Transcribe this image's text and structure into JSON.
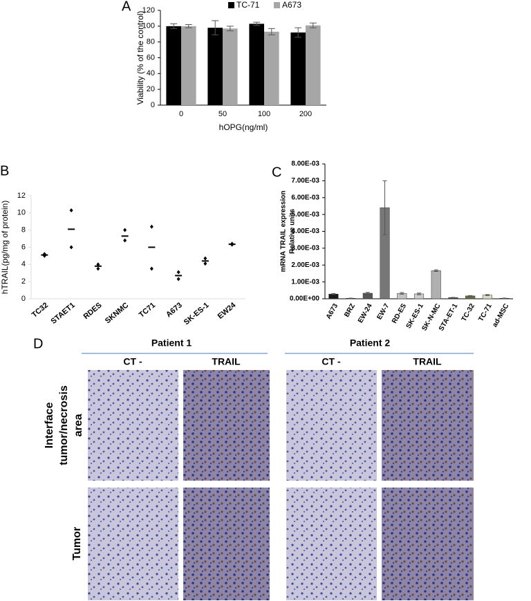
{
  "chart_data": [
    {
      "type": "bar",
      "panel": "A",
      "xlabel": "hOPG(ng/ml)",
      "ylabel": "Viability (% of the control)",
      "categories": [
        "0",
        "50",
        "100",
        "200"
      ],
      "series": [
        {
          "name": "TC-71",
          "color": "#000000",
          "values": [
            100,
            98,
            103,
            92
          ],
          "errors": [
            3,
            9,
            2,
            6
          ]
        },
        {
          "name": "A673",
          "color": "#a6a6a6",
          "values": [
            100,
            97,
            93,
            101
          ],
          "errors": [
            2,
            3,
            4,
            3
          ]
        }
      ],
      "ylim": [
        0,
        120
      ],
      "yticks": [
        0,
        20,
        40,
        60,
        80,
        100,
        120
      ],
      "legend": "top"
    },
    {
      "type": "dot",
      "panel": "B",
      "ylabel": "hTRAIL(pg/mg of  protein)",
      "categories": [
        "TC32",
        "STAET1",
        "RDES",
        "SKNMC",
        "TC71",
        "A673",
        "SK-ES-1",
        "EW24"
      ],
      "points": [
        [
          5.0,
          5.2
        ],
        [
          10.3,
          6.0
        ],
        [
          4.0,
          3.5
        ],
        [
          8.0,
          6.8
        ],
        [
          8.4,
          3.5
        ],
        [
          3.1,
          2.3
        ],
        [
          4.7,
          4.1
        ],
        [
          6.4,
          6.3
        ]
      ],
      "means": [
        5.1,
        8.1,
        3.8,
        7.3,
        6.0,
        2.7,
        4.4,
        6.35
      ],
      "ylim": [
        0,
        12
      ],
      "yticks": [
        0,
        2,
        4,
        6,
        8,
        10,
        12
      ]
    },
    {
      "type": "bar",
      "panel": "C",
      "ylabel": [
        "mRNA TRAIL expression",
        "Relative units"
      ],
      "categories": [
        "A673",
        "BRZ",
        "EW-24",
        "EW-7",
        "RD-ES",
        "SK-ES-1",
        "SK-N-MC",
        "STA-ET-1",
        "TC-32",
        "TC-71",
        "ad-MSC"
      ],
      "values": [
        0.00028,
        3e-05,
        0.00033,
        0.0054,
        0.00032,
        0.00029,
        0.00167,
        7e-05,
        0.00017,
        0.00022,
        3e-05
      ],
      "errors": [
        3e-05,
        1e-05,
        5e-05,
        0.0016,
        5e-05,
        5e-05,
        5e-05,
        1e-05,
        2e-05,
        3e-05,
        1e-05
      ],
      "colors": [
        "#1a1a1a",
        "#333333",
        "#555555",
        "#777777",
        "#c4c4c4",
        "#cccccc",
        "#b0b0b0",
        "#444444",
        "#6b6b40",
        "#dcdcc4",
        "#222222"
      ],
      "ylim": [
        0,
        0.008
      ],
      "yticks": [
        {
          "value": 0,
          "label": "0.00E+00"
        },
        {
          "value": 0.001,
          "label": "1.00E-03"
        },
        {
          "value": 0.002,
          "label": "2.00E-03"
        },
        {
          "value": 0.003,
          "label": "3.00E-03"
        },
        {
          "value": 0.004,
          "label": "4.00E-03"
        },
        {
          "value": 0.005,
          "label": "5.00E-03"
        },
        {
          "value": 0.006,
          "label": "6.00E-03"
        },
        {
          "value": 0.007,
          "label": "7.00E-03"
        },
        {
          "value": 0.008,
          "label": "8.00E-03"
        }
      ]
    }
  ],
  "panel_d": {
    "panel": "D",
    "patients": [
      "Patient 1",
      "Patient 2"
    ],
    "conditions": [
      "CT -",
      "TRAIL",
      "CT -",
      "TRAIL"
    ],
    "rows": [
      [
        "Interface",
        "tumor/necrosis",
        "area"
      ],
      [
        "Tumor"
      ]
    ]
  }
}
